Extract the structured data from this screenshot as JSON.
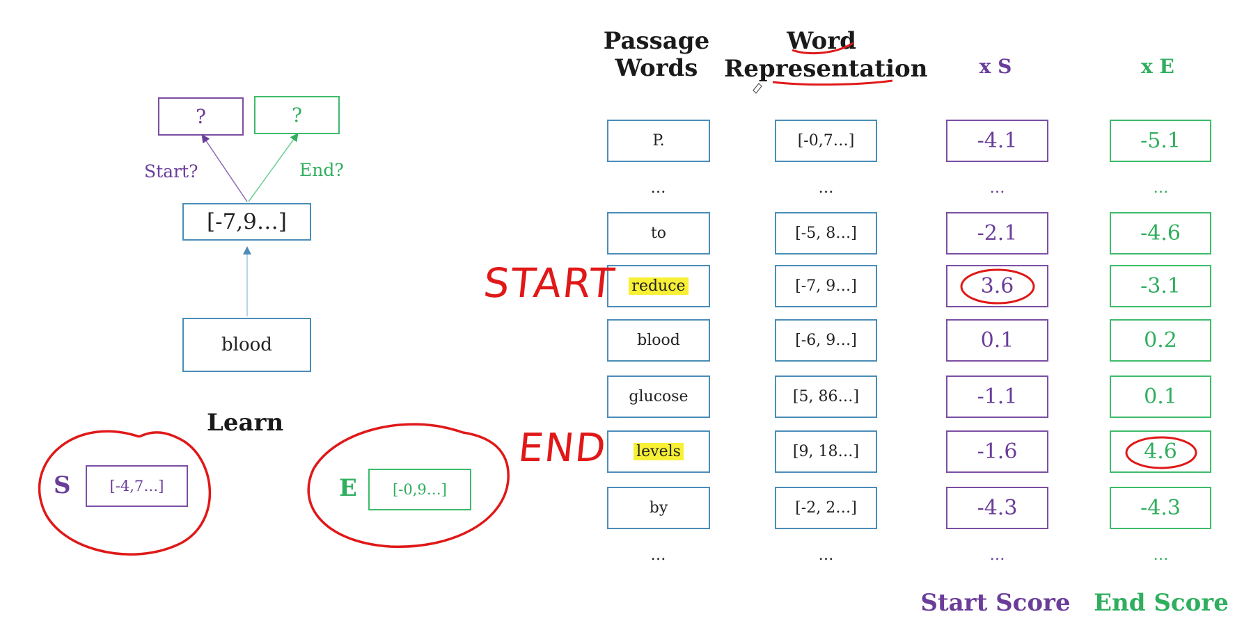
{
  "left": {
    "output_start": "?",
    "output_end": "?",
    "label_start": "Start?",
    "label_end": "End?",
    "vector": "[-7,9…]",
    "word": "blood",
    "learn_label": "Learn",
    "s_label": "S",
    "s_vector": "[-4,7…]",
    "e_label": "E",
    "e_vector": "[-0,9…]"
  },
  "table": {
    "headers": {
      "passage_words": "Passage Words",
      "word_repr_top": "Word",
      "word_repr_bottom": "Representation",
      "xs": "x S",
      "xe": "x E"
    },
    "ellipsis": "…",
    "rows": [
      {
        "word": "P.",
        "repr": "[-0,7…]",
        "start": "-4.1",
        "end": "-5.1"
      },
      {
        "word": "to",
        "repr": "[-5, 8…]",
        "start": "-2.1",
        "end": "-4.6"
      },
      {
        "word": "reduce",
        "repr": "[-7, 9…]",
        "start": "3.6",
        "end": "-3.1"
      },
      {
        "word": "blood",
        "repr": "[-6, 9…]",
        "start": "0.1",
        "end": "0.2"
      },
      {
        "word": "glucose",
        "repr": "[5, 86…]",
        "start": "-1.1",
        "end": "0.1"
      },
      {
        "word": "levels",
        "repr": "[9, 18…]",
        "start": "-1.6",
        "end": "4.6"
      },
      {
        "word": "by",
        "repr": "[-2, 2…]",
        "start": "-4.3",
        "end": "-4.3"
      }
    ],
    "footer_start": "Start Score",
    "footer_end": "End Score"
  },
  "annotations": {
    "start": "START",
    "end": "END"
  },
  "colors": {
    "purple": "#6a3d9a",
    "green": "#2fae5e",
    "blue": "#4a8db8",
    "red": "#e01818",
    "highlight": "#f7f034"
  }
}
